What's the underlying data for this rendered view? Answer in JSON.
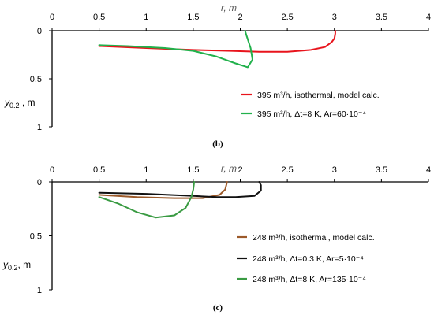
{
  "chart_data": [
    {
      "type": "line",
      "panel_label": "(b)",
      "xlabel": "r, m",
      "ylabel": "y0.2 ,   m",
      "ylabel_base": "y",
      "ylabel_sub": "0.2",
      "ylabel_rest": " ,   m",
      "xlim": [
        0,
        4
      ],
      "ylim": [
        0,
        1
      ],
      "y_inverted": true,
      "x_axis_position": "top",
      "x_ticks": [
        "0",
        "0.5",
        "1",
        "1.5",
        "2",
        "2.5",
        "3",
        "3.5",
        "4"
      ],
      "y_ticks": [
        "0",
        "0.5",
        "1"
      ],
      "legend_position": "bottom-right",
      "series": [
        {
          "name": "395 m³/h,   isothermal, model calc.",
          "color": "#e8141c",
          "points": [
            [
              0.5,
              0.16
            ],
            [
              1.0,
              0.18
            ],
            [
              1.5,
              0.2
            ],
            [
              1.9,
              0.21
            ],
            [
              2.2,
              0.22
            ],
            [
              2.5,
              0.22
            ],
            [
              2.75,
              0.2
            ],
            [
              2.9,
              0.17
            ],
            [
              2.97,
              0.12
            ],
            [
              3.0,
              0.08
            ],
            [
              3.01,
              0.03
            ],
            [
              3.01,
              0.0
            ]
          ]
        },
        {
          "name": "395 m³/h,   Δt=8 K,   Ar=60·10⁻⁴",
          "color": "#22b14c",
          "points": [
            [
              0.5,
              0.15
            ],
            [
              0.8,
              0.16
            ],
            [
              1.2,
              0.18
            ],
            [
              1.5,
              0.21
            ],
            [
              1.75,
              0.27
            ],
            [
              1.95,
              0.34
            ],
            [
              2.08,
              0.38
            ],
            [
              2.13,
              0.3
            ],
            [
              2.11,
              0.18
            ],
            [
              2.07,
              0.06
            ],
            [
              2.05,
              0.0
            ]
          ]
        }
      ]
    },
    {
      "type": "line",
      "panel_label": "(c)",
      "xlabel": "r, m",
      "ylabel": "y0.2,   m",
      "ylabel_base": "y",
      "ylabel_sub": "0.2",
      "ylabel_rest": ",   m",
      "xlim": [
        0,
        4
      ],
      "ylim": [
        0,
        1
      ],
      "y_inverted": true,
      "x_axis_position": "top",
      "x_ticks": [
        "0",
        "0.5",
        "1",
        "1.5",
        "2",
        "2.5",
        "3",
        "3.5",
        "4"
      ],
      "y_ticks": [
        "0",
        "0.5",
        "1"
      ],
      "legend_position": "bottom-right",
      "series": [
        {
          "name": "248 m³/h,   isothermal, model calc.",
          "color": "#9c5a2a",
          "points": [
            [
              0.5,
              0.12
            ],
            [
              0.9,
              0.14
            ],
            [
              1.3,
              0.15
            ],
            [
              1.6,
              0.15
            ],
            [
              1.78,
              0.12
            ],
            [
              1.84,
              0.07
            ],
            [
              1.86,
              0.0
            ]
          ]
        },
        {
          "name": "248 m³/h,   Δt=0.3 K,   Ar=5·10⁻⁴",
          "color": "#111111",
          "points": [
            [
              0.5,
              0.1
            ],
            [
              1.0,
              0.11
            ],
            [
              1.5,
              0.13
            ],
            [
              1.75,
              0.14
            ],
            [
              1.95,
              0.14
            ],
            [
              2.15,
              0.13
            ],
            [
              2.22,
              0.08
            ],
            [
              2.22,
              0.03
            ],
            [
              2.2,
              0.0
            ]
          ]
        },
        {
          "name": "248 m³/h,   Δt=8 K,   Ar=135·10⁻⁴",
          "color": "#3a9b43",
          "points": [
            [
              0.5,
              0.14
            ],
            [
              0.7,
              0.2
            ],
            [
              0.9,
              0.28
            ],
            [
              1.1,
              0.33
            ],
            [
              1.3,
              0.31
            ],
            [
              1.42,
              0.24
            ],
            [
              1.48,
              0.14
            ],
            [
              1.5,
              0.07
            ],
            [
              1.51,
              0.0
            ]
          ]
        }
      ]
    }
  ]
}
